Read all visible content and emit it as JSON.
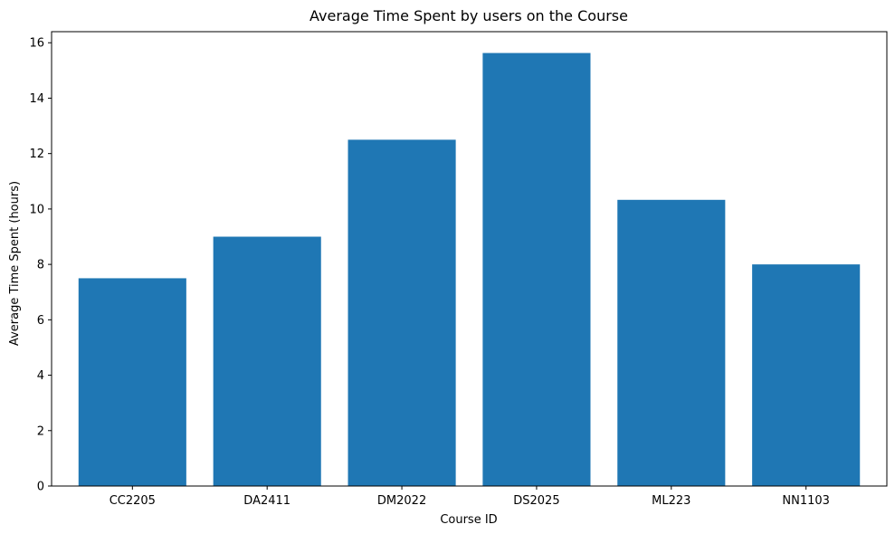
{
  "chart_data": {
    "type": "bar",
    "title": "Average Time Spent by users on the Course",
    "xlabel": "Course ID",
    "ylabel": "Average Time Spent (hours)",
    "categories": [
      "CC2205",
      "DA2411",
      "DM2022",
      "DS2025",
      "ML223",
      "NN1103"
    ],
    "values": [
      7.5,
      9.0,
      12.5,
      15.63,
      10.33,
      8.0
    ],
    "ylim": [
      0,
      16.4
    ],
    "yticks": [
      "0",
      "2",
      "4",
      "6",
      "8",
      "10",
      "12",
      "14",
      "16"
    ],
    "grid": false,
    "bar_color": "#1f77b4"
  }
}
